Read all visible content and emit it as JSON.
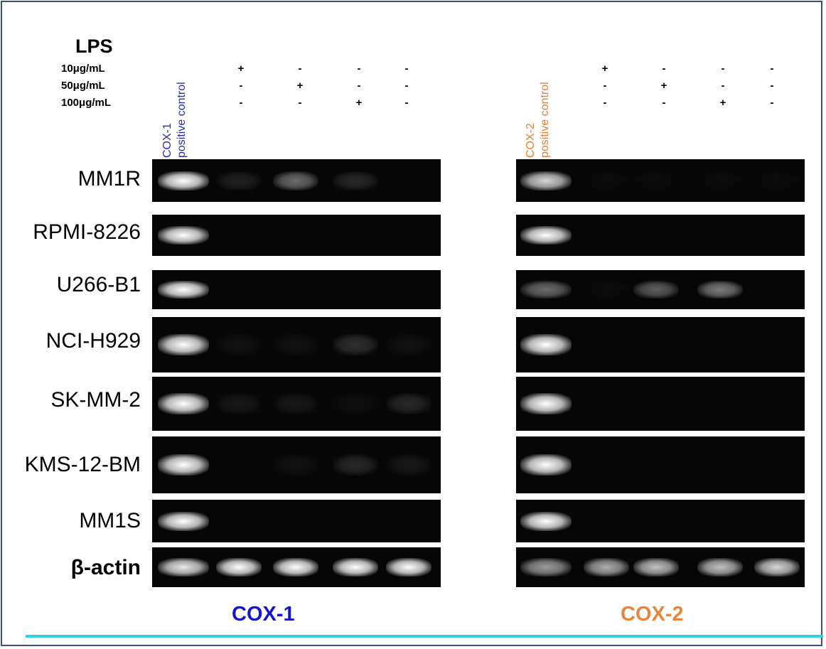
{
  "lps": {
    "title": "LPS",
    "doses": [
      "10μg/mL",
      "50μg/mL",
      "100μg/mL"
    ],
    "signs": [
      [
        "+",
        "-",
        "-",
        "-"
      ],
      [
        "-",
        "+",
        "-",
        "-"
      ],
      [
        "-",
        "-",
        "+",
        "-"
      ]
    ]
  },
  "panels": [
    {
      "title": "COX-1",
      "title_color": "#1515d0",
      "control_lines": [
        "COX-1",
        "positive control"
      ],
      "control_color": "#2a2ab8"
    },
    {
      "title": "COX-2",
      "title_color": "#e8843c",
      "control_lines": [
        "COX-2",
        "positive control"
      ],
      "control_color": "#e0803a"
    }
  ],
  "rows": [
    {
      "label": "MM1R",
      "bold": false,
      "cox1": [
        1.0,
        0.25,
        0.6,
        0.3,
        0.0
      ],
      "cox2": [
        0.9,
        0.05,
        0.05,
        0.05,
        0.03
      ]
    },
    {
      "label": "RPMI-8226",
      "bold": false,
      "cox1": [
        1.0,
        0.0,
        0.0,
        0.0,
        0.0
      ],
      "cox2": [
        1.0,
        0.0,
        0.0,
        0.0,
        0.0
      ]
    },
    {
      "label": "U266-B1",
      "bold": false,
      "cox1": [
        1.0,
        0.0,
        0.0,
        0.0,
        0.0
      ],
      "cox2": [
        0.6,
        0.05,
        0.55,
        0.65,
        0.0
      ]
    },
    {
      "label": "NCI-H929",
      "bold": false,
      "cox1": [
        1.0,
        0.15,
        0.15,
        0.35,
        0.15
      ],
      "cox2": [
        1.0,
        0.0,
        0.0,
        0.0,
        0.0
      ]
    },
    {
      "label": "SK-MM-2",
      "bold": false,
      "cox1": [
        1.0,
        0.2,
        0.2,
        0.1,
        0.3
      ],
      "cox2": [
        1.0,
        0.0,
        0.0,
        0.0,
        0.0
      ]
    },
    {
      "label": "KMS-12-BM",
      "bold": false,
      "cox1": [
        1.0,
        0.0,
        0.15,
        0.3,
        0.2
      ],
      "cox2": [
        1.0,
        0.0,
        0.0,
        0.0,
        0.0
      ]
    },
    {
      "label": "MM1S",
      "bold": false,
      "cox1": [
        1.0,
        0.0,
        0.0,
        0.0,
        0.0
      ],
      "cox2": [
        1.0,
        0.0,
        0.0,
        0.0,
        0.0
      ]
    },
    {
      "label": "β-actin",
      "bold": true,
      "cox1": [
        0.95,
        1.0,
        1.0,
        1.0,
        1.0
      ],
      "cox2": [
        0.75,
        0.8,
        0.85,
        0.85,
        0.9
      ]
    }
  ]
}
